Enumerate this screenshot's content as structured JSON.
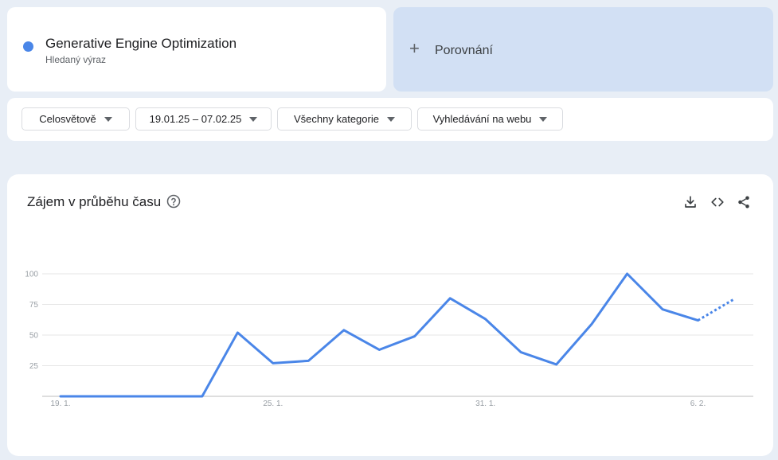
{
  "search_term": {
    "label": "Generative Engine Optimization",
    "sublabel": "Hledaný výraz",
    "color": "#4a86e8"
  },
  "compare": {
    "label": "Porovnání",
    "icon": "plus-icon"
  },
  "filters": {
    "region": "Celosvětově",
    "date_range": "19.01.25 – 07.02.25",
    "category": "Všechny kategorie",
    "search_type": "Vyhledávání na webu"
  },
  "chart_section": {
    "title": "Zájem v průběhu času",
    "help_icon": "help-circle-icon",
    "tools": [
      "download-icon",
      "embed-code-icon",
      "share-icon"
    ]
  },
  "chart_data": {
    "type": "line",
    "title": "Zájem v průběhu času",
    "x": [
      "19. 1.",
      "20. 1.",
      "21. 1.",
      "22. 1.",
      "23. 1.",
      "24. 1.",
      "25. 1.",
      "26. 1.",
      "27. 1.",
      "28. 1.",
      "29. 1.",
      "30. 1.",
      "31. 1.",
      "1. 2.",
      "2. 2.",
      "3. 2.",
      "4. 2.",
      "5. 2.",
      "6. 2.",
      "7. 2."
    ],
    "x_tick_labels": [
      "19. 1.",
      "25. 1.",
      "31. 1.",
      "6. 2."
    ],
    "ylim": [
      0,
      100
    ],
    "y_ticks": [
      25,
      50,
      75,
      100
    ],
    "grid": true,
    "series": [
      {
        "values": [
          0,
          0,
          0,
          0,
          0,
          52,
          27,
          29,
          54,
          38,
          49,
          80,
          63,
          36,
          26,
          59,
          100,
          71,
          62,
          79
        ],
        "color": "#4a86e8",
        "partial_from_index": 18
      }
    ]
  }
}
